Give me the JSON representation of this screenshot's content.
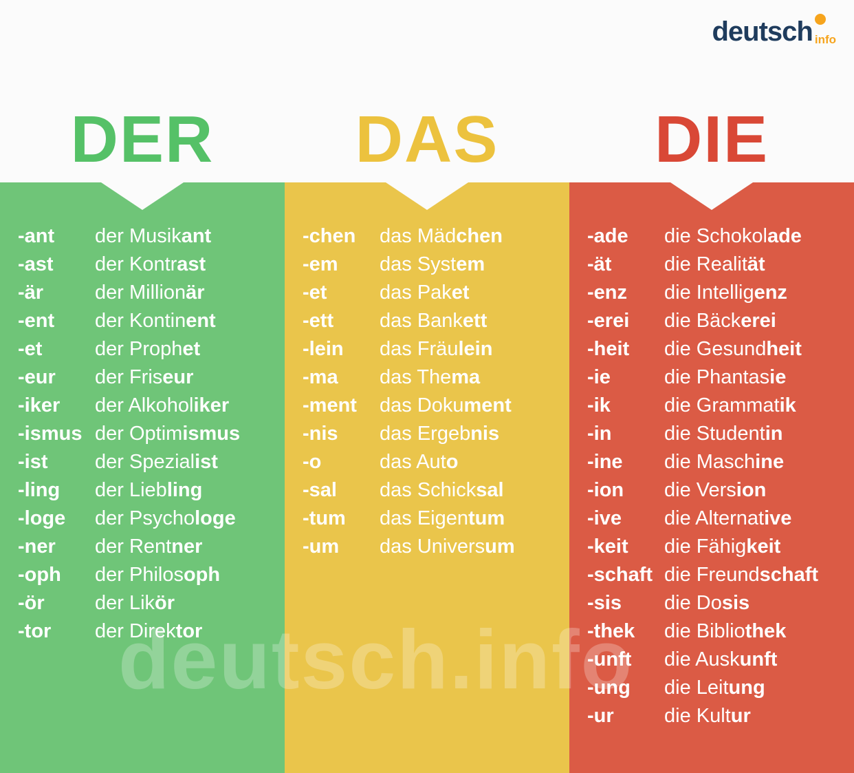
{
  "logo": {
    "name": "deutsch",
    "suffix": "info",
    "name_color": "#1f3c5d",
    "accent_color": "#f6a41d"
  },
  "watermark": {
    "text": "deutsch.info"
  },
  "columns": [
    {
      "heading": "DER",
      "heading_color": "#55c167",
      "panel_color": "#6fc578",
      "rows": [
        {
          "suffix": "-ant",
          "start": "der Musik",
          "end": "ant"
        },
        {
          "suffix": "-ast",
          "start": "der Kontr",
          "end": "ast"
        },
        {
          "suffix": "-är",
          "start": "der Million",
          "end": "är"
        },
        {
          "suffix": "-ent",
          "start": "der Kontin",
          "end": "ent"
        },
        {
          "suffix": "-et",
          "start": "der Proph",
          "end": "et"
        },
        {
          "suffix": "-eur",
          "start": "der Fris",
          "end": "eur"
        },
        {
          "suffix": "-iker",
          "start": "der Alkohol",
          "end": "iker"
        },
        {
          "suffix": "-ismus",
          "start": "der Optim",
          "end": "ismus"
        },
        {
          "suffix": "-ist",
          "start": "der Spezial",
          "end": "ist"
        },
        {
          "suffix": "-ling",
          "start": "der Lieb",
          "end": "ling"
        },
        {
          "suffix": "-loge",
          "start": "der Psycho",
          "end": "loge"
        },
        {
          "suffix": "-ner",
          "start": "der Rent",
          "end": "ner"
        },
        {
          "suffix": "-oph",
          "start": "der Philos",
          "end": "oph"
        },
        {
          "suffix": "-ör",
          "start": "der Lik",
          "end": "ör"
        },
        {
          "suffix": "-tor",
          "start": "der Direk",
          "end": "tor"
        }
      ]
    },
    {
      "heading": "DAS",
      "heading_color": "#ecc23e",
      "panel_color": "#eac54b",
      "rows": [
        {
          "suffix": "-chen",
          "start": "das Mäd",
          "end": "chen"
        },
        {
          "suffix": "-em",
          "start": "das Syst",
          "end": "em"
        },
        {
          "suffix": "-et",
          "start": "das Pak",
          "end": "et"
        },
        {
          "suffix": "-ett",
          "start": "das Bank",
          "end": "ett"
        },
        {
          "suffix": "-lein",
          "start": "das Fräu",
          "end": "lein"
        },
        {
          "suffix": "-ma",
          "start": "das The",
          "end": "ma"
        },
        {
          "suffix": "-ment",
          "start": "das Doku",
          "end": "ment"
        },
        {
          "suffix": "-nis",
          "start": "das Ergeb",
          "end": "nis"
        },
        {
          "suffix": "-o",
          "start": "das Aut",
          "end": "o"
        },
        {
          "suffix": "-sal",
          "start": "das Schick",
          "end": "sal"
        },
        {
          "suffix": "-tum",
          "start": "das Eigen",
          "end": "tum"
        },
        {
          "suffix": "-um",
          "start": "das Univers",
          "end": "um"
        }
      ]
    },
    {
      "heading": "DIE",
      "heading_color": "#d94836",
      "panel_color": "#db5b45",
      "rows": [
        {
          "suffix": "-ade",
          "start": "die Schokol",
          "end": "ade"
        },
        {
          "suffix": "-ät",
          "start": "die Realit",
          "end": "ät"
        },
        {
          "suffix": "-enz",
          "start": "die Intellig",
          "end": "enz"
        },
        {
          "suffix": "-erei",
          "start": "die Bäck",
          "end": "erei"
        },
        {
          "suffix": "-heit",
          "start": "die Gesund",
          "end": "heit"
        },
        {
          "suffix": "-ie",
          "start": "die Phantas",
          "end": "ie"
        },
        {
          "suffix": "-ik",
          "start": "die Grammat",
          "end": "ik"
        },
        {
          "suffix": "-in",
          "start": "die Student",
          "end": "in"
        },
        {
          "suffix": "-ine",
          "start": "die Masch",
          "end": "ine"
        },
        {
          "suffix": "-ion",
          "start": "die Vers",
          "end": "ion"
        },
        {
          "suffix": "-ive",
          "start": "die Alternat",
          "end": "ive"
        },
        {
          "suffix": "-keit",
          "start": "die Fähig",
          "end": "keit"
        },
        {
          "suffix": "-schaft",
          "start": "die Freund",
          "end": "schaft"
        },
        {
          "suffix": "-sis",
          "start": "die Do",
          "end": "sis"
        },
        {
          "suffix": "-thek",
          "start": "die Biblio",
          "end": "thek"
        },
        {
          "suffix": "-unft",
          "start": "die Ausk",
          "end": "unft"
        },
        {
          "suffix": "-ung",
          "start": "die Leit",
          "end": "ung"
        },
        {
          "suffix": "-ur",
          "start": "die Kult",
          "end": "ur"
        }
      ]
    }
  ]
}
